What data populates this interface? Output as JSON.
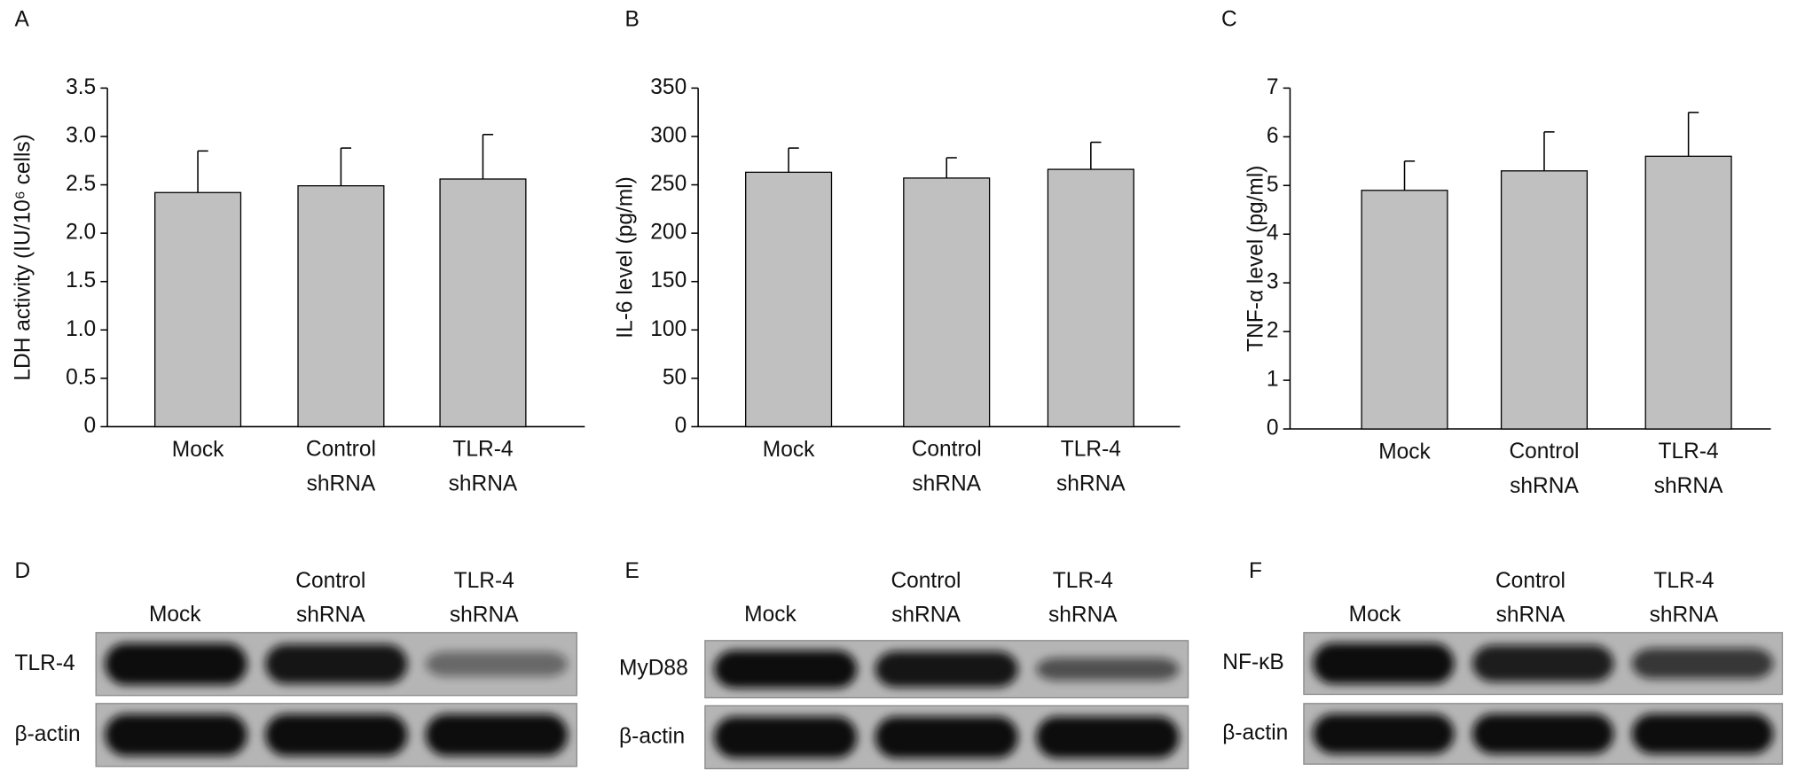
{
  "chart_data": [
    {
      "type": "bar",
      "title": "A",
      "ylabel": "LDH activity (IU/10⁶ cells)",
      "categories": [
        "Mock",
        "Control shRNA",
        "TLR-4 shRNA"
      ],
      "values": [
        2.42,
        2.49,
        2.56
      ],
      "errors": [
        0.43,
        0.39,
        0.46
      ],
      "color": "#c0c0c0",
      "ylim": [
        0,
        3.5
      ],
      "yticks": [
        0,
        0.5,
        {
          "value": 1,
          "label": "1.0"
        },
        1.5,
        {
          "value": 2,
          "label": "2.0"
        },
        2.5,
        {
          "value": 3,
          "label": "3.0"
        },
        3.5
      ]
    },
    {
      "type": "bar",
      "title": "B",
      "ylabel": "IL-6 level (pg/ml)",
      "categories": [
        "Mock",
        "Control shRNA",
        "TLR-4 shRNA"
      ],
      "values": [
        263,
        257,
        266
      ],
      "errors": [
        25,
        21,
        28
      ],
      "color": "#c0c0c0",
      "ylim": [
        0,
        350
      ],
      "yticks": [
        0,
        50,
        100,
        150,
        200,
        250,
        300,
        350
      ]
    },
    {
      "type": "bar",
      "title": "C",
      "ylabel": "TNF-α level (pg/ml)",
      "categories": [
        "Mock",
        "Control shRNA",
        "TLR-4 shRNA"
      ],
      "values": [
        4.9,
        5.3,
        5.6
      ],
      "errors": [
        0.6,
        0.8,
        0.9
      ],
      "color": "#c0c0c0",
      "ylim": [
        0,
        7
      ],
      "yticks": [
        0,
        1,
        2,
        3,
        4,
        5,
        6,
        7
      ]
    }
  ],
  "blots": [
    {
      "panel": "D",
      "lanes": [
        "Mock",
        "Control shRNA",
        "TLR-4 shRNA"
      ],
      "rows": [
        "TLR-4",
        "β-actin"
      ]
    },
    {
      "panel": "E",
      "lanes": [
        "Mock",
        "Control shRNA",
        "TLR-4 shRNA"
      ],
      "rows": [
        "MyD88",
        "β-actin"
      ]
    },
    {
      "panel": "F",
      "lanes": [
        "Mock",
        "Control shRNA",
        "TLR-4 shRNA"
      ],
      "rows": [
        "NF-κB",
        "β-actin"
      ]
    }
  ]
}
